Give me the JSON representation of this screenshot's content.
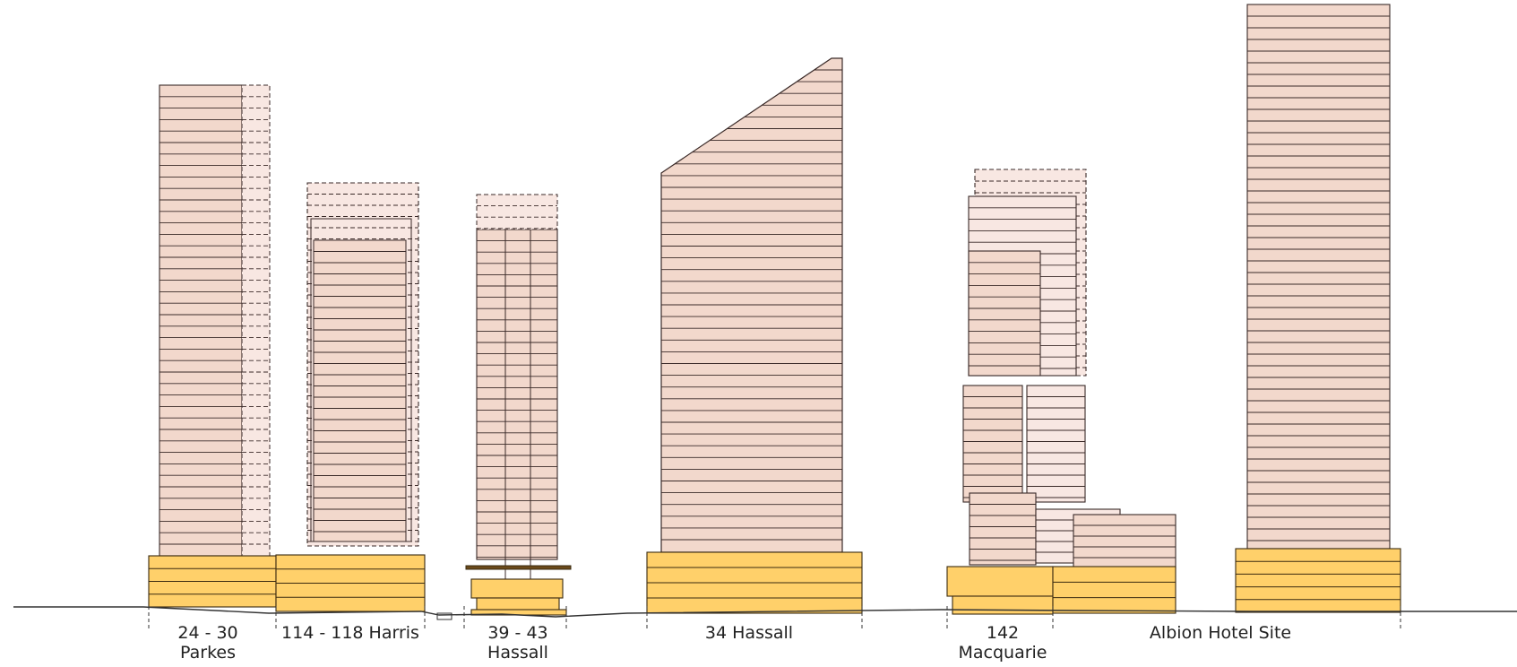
{
  "colors": {
    "tower_fill": "#f2d8cc",
    "tower_fill_light": "#f8e7e2",
    "tower_stroke": "#3a2a28",
    "podium_fill": "#ffd06a",
    "podium_stroke": "#3a2a10",
    "ground_line": "#333333",
    "label_text": "#222222"
  },
  "buildings": [
    {
      "id": "parkes",
      "lines": [
        "24 - 30",
        "Parkes"
      ]
    },
    {
      "id": "harris",
      "lines": [
        "114 - 118 Harris"
      ]
    },
    {
      "id": "hassall39",
      "lines": [
        "39 - 43",
        "Hassall"
      ]
    },
    {
      "id": "hassall34",
      "lines": [
        "34 Hassall"
      ]
    },
    {
      "id": "macquarie",
      "lines": [
        "142",
        "Macquarie"
      ]
    },
    {
      "id": "albion",
      "lines": [
        "Albion Hotel Site"
      ]
    }
  ]
}
